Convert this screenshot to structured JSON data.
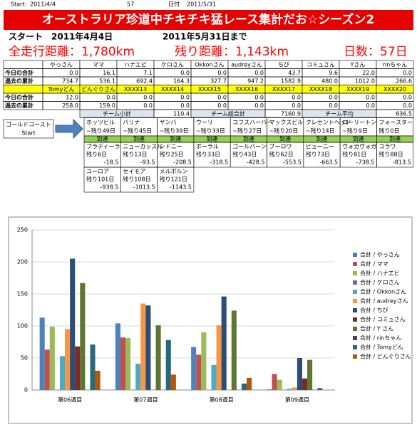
{
  "header": {
    "start_label": "Start:",
    "start_date": "2011/4/4",
    "days": "57",
    "date_label": "日付",
    "end_date": "2011/5/31"
  },
  "title": "オーストラリア珍道中チキチキ猛レース集計だお☆シーズン2",
  "period": {
    "start": "スタート　2011年4月4日",
    "end": "2011年5月31日まで"
  },
  "summary": [
    "全走行距離：1,780km",
    "残り距離：1,143km",
    "日数：57日"
  ],
  "table": {
    "groups": [
      {
        "members": [
          "やっさん",
          "ママ",
          "ハナエビ",
          "ケロさん",
          "Okkonさん",
          "audreyさん",
          "ちび",
          "コミュさん",
          "Yさん",
          "rinちゃん"
        ],
        "rows": [
          {
            "label": "今日の合計",
            "values": [
              "0.0",
              "16.1",
              "7.1",
              "0.0",
              "0.0",
              "0.0",
              "43.7",
              "9.6",
              "22.0",
              "0.0"
            ]
          },
          {
            "label": "過去の累計",
            "values": [
              "734.7",
              "536.1",
              "692.4",
              "164.3",
              "327.7",
              "947.2",
              "1582.9",
              "480.0",
              "1012.0",
              "266.6"
            ]
          }
        ]
      },
      {
        "members": [
          "Tomyどん",
          "どんぐりさん",
          "XXXX13",
          "XXXX14",
          "XXXX15",
          "XXXX16",
          "XXXX17",
          "XXXX18",
          "XXXX19",
          "XXXX20"
        ],
        "rows": [
          {
            "label": "今日の合計",
            "values": [
              "12.0",
              "0.0",
              "0.0",
              "0.0",
              "0.0",
              "0.0",
              "0.0",
              "0.0",
              "0.0",
              "0.0"
            ]
          },
          {
            "label": "過去の累計",
            "values": [
              "258.0",
              "159.0",
              "0.0",
              "0.0",
              "0.0",
              "0.0",
              "0.0",
              "0.0",
              "0.0",
              "0.0"
            ]
          }
        ]
      }
    ],
    "totals": [
      {
        "label": "チーム小計",
        "value": "110.4"
      },
      {
        "label": "チーム総合計",
        "value": "7160.9"
      },
      {
        "label": "チーム平均",
        "value": "636.5"
      }
    ]
  },
  "course": {
    "start": [
      "ゴールドコースト",
      "Start"
    ],
    "reached": [
      {
        "name": "ホッツビル",
        "days": "~残り49日",
        "status": "到達"
      },
      {
        "name": "バリナ",
        "days": "~残り45日",
        "status": "到達"
      },
      {
        "name": "ヤンバ",
        "days": "~残り39日",
        "status": "到達"
      },
      {
        "name": "ウーリ",
        "days": "~残り33日",
        "status": "到達"
      },
      {
        "name": "コフスハーバー",
        "days": "~残り27日",
        "status": "到達"
      },
      {
        "name": "マックスビル",
        "days": "~残り20日",
        "status": "到達"
      },
      {
        "name": "クレセントヘッド",
        "days": "~残り14日",
        "status": "到達"
      },
      {
        "name": "ローリートン",
        "days": "~残り9日",
        "status": "到達"
      },
      {
        "name": "フォースター",
        "days": "残り0日",
        "status": "到達"
      }
    ],
    "remaining": [
      [
        {
          "name": "ブラディーラ",
          "days": "残り6日",
          "distance": "-18.5"
        },
        {
          "name": "ニューカッスル",
          "days": "残り13日",
          "distance": "-93.5"
        },
        {
          "name": "シドニー",
          "days": "残り25日",
          "distance": "-208.5"
        },
        {
          "name": "ボーラル",
          "days": "残り33日",
          "distance": "-318.5"
        },
        {
          "name": "ゴールバーン",
          "days": "残り43日",
          "distance": "-428.5"
        },
        {
          "name": "ブーロワ",
          "days": "残り62日",
          "distance": "-553.5"
        },
        {
          "name": "ビューニー",
          "days": "残り73日",
          "distance": "-663.5"
        },
        {
          "name": "ヴォガヴォガ",
          "days": "残り81日",
          "distance": "-738.5"
        },
        {
          "name": "コラワ",
          "days": "残り88日",
          "distance": "-813.5"
        }
      ],
      [
        {
          "name": "ユーロア",
          "days": "残り101日",
          "distance": "-938.5"
        },
        {
          "name": "セイモア",
          "days": "残り108日",
          "distance": "-1013.5"
        },
        {
          "name": "メルボルン",
          "days": "残り121日",
          "distance": "-1143.5"
        }
      ]
    ]
  },
  "chart_data": {
    "type": "bar",
    "categories": [
      "第06週目",
      "第07週目",
      "第08週目",
      "第09週目"
    ],
    "ylim": [
      0,
      250
    ],
    "yticks": [
      0,
      50,
      100,
      150,
      200,
      250
    ],
    "grid": true,
    "series": [
      {
        "name": "合計 / やっさん",
        "color": "#4F81BD",
        "values": [
          113,
          104,
          67,
          1
        ]
      },
      {
        "name": "合計 / ママ",
        "color": "#C0504D",
        "values": [
          63,
          82,
          55,
          25
        ]
      },
      {
        "name": "合計 / ハナエビ",
        "color": "#9BBB59",
        "values": [
          99,
          81,
          90,
          16
        ]
      },
      {
        "name": "合計 / ケロさん",
        "color": "#8064A2",
        "values": [
          0,
          0,
          0,
          0
        ]
      },
      {
        "name": "合計 / Okkonさん",
        "color": "#4BACC6",
        "values": [
          53,
          41,
          39,
          2
        ]
      },
      {
        "name": "合計 / audreyさん",
        "color": "#F79646",
        "values": [
          95,
          135,
          101,
          4
        ]
      },
      {
        "name": "合計 / ちび",
        "color": "#2C4D75",
        "values": [
          205,
          132,
          146,
          50
        ]
      },
      {
        "name": "合計 / コミュさん",
        "color": "#772C2A",
        "values": [
          68,
          0,
          0,
          18
        ]
      },
      {
        "name": "合計 / Y さん",
        "color": "#5F7530",
        "values": [
          167,
          101,
          124,
          47
        ]
      },
      {
        "name": "合計 / rinちゃん",
        "color": "#4D3B62",
        "values": [
          0,
          0,
          0,
          0
        ]
      },
      {
        "name": "合計 / Tomyどん",
        "color": "#276A7C",
        "values": [
          71,
          78,
          10,
          3
        ]
      },
      {
        "name": "合計 / どんぐりさん",
        "color": "#B65708",
        "values": [
          30,
          24,
          19,
          0
        ]
      }
    ]
  }
}
